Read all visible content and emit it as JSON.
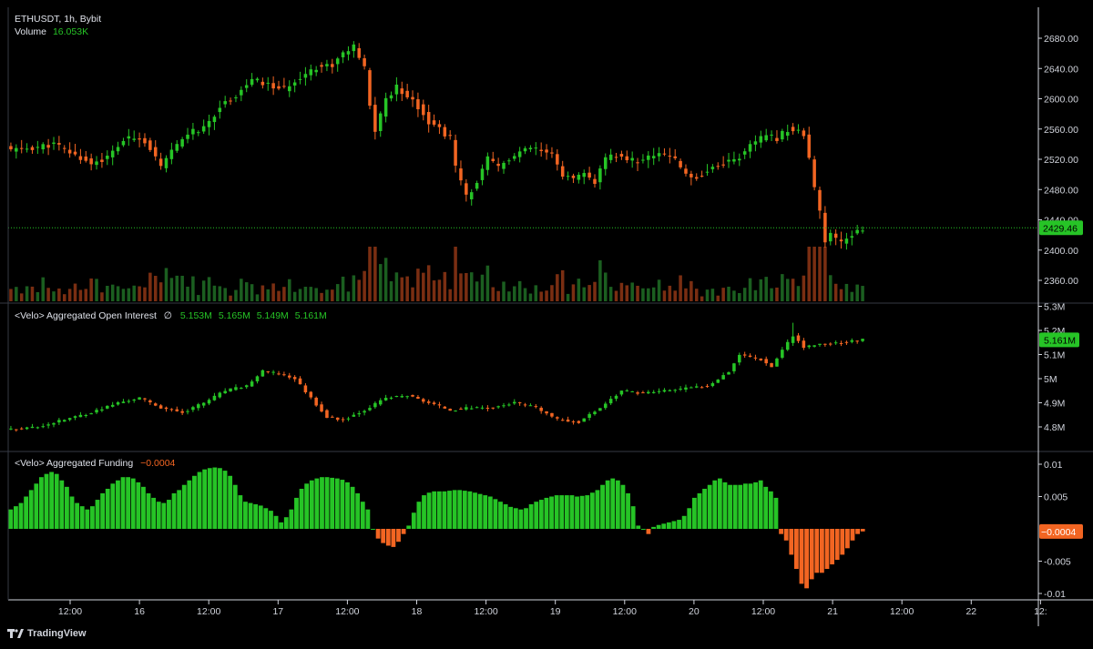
{
  "header": {
    "symbol_line": "ETHUSDT, 1h, Bybit",
    "volume_label": "Volume",
    "volume_value": "16.053K"
  },
  "oi_legend": {
    "label": "<Velo> Aggregated Open Interest",
    "symbol": "∅",
    "values": [
      "5.153M",
      "5.165M",
      "5.149M",
      "5.161M"
    ]
  },
  "funding_legend": {
    "label": "<Velo> Aggregated Funding",
    "value": "−0.0004"
  },
  "footer": {
    "brand": "TradingView"
  },
  "colors": {
    "up": "#26c426",
    "down": "#f26522",
    "bg": "#000000",
    "grid": "#2a2e39",
    "text": "#d1d4dc",
    "price_line": "#26c426"
  },
  "chart_data": [
    {
      "type": "candlestick",
      "name": "ETHUSDT, 1h, Bybit",
      "y_axis_ticks": [
        "2680.00",
        "2640.00",
        "2600.00",
        "2560.00",
        "2520.00",
        "2480.00",
        "2440.00",
        "2400.00",
        "2360.00"
      ],
      "ylim": [
        2340,
        2700
      ],
      "last_price_label": "2429.46",
      "last_price": 2429.46,
      "close_path": [
        [
          0,
          2532
        ],
        [
          5,
          2536
        ],
        [
          8,
          2540
        ],
        [
          12,
          2525
        ],
        [
          15,
          2515
        ],
        [
          18,
          2522
        ],
        [
          21,
          2545
        ],
        [
          24,
          2550
        ],
        [
          26,
          2535
        ],
        [
          28,
          2508
        ],
        [
          30,
          2530
        ],
        [
          33,
          2555
        ],
        [
          36,
          2560
        ],
        [
          39,
          2590
        ],
        [
          42,
          2605
        ],
        [
          45,
          2625
        ],
        [
          48,
          2618
        ],
        [
          51,
          2612
        ],
        [
          54,
          2630
        ],
        [
          57,
          2642
        ],
        [
          60,
          2645
        ],
        [
          62,
          2660
        ],
        [
          64,
          2668
        ],
        [
          66,
          2640
        ],
        [
          67,
          2590
        ],
        [
          68,
          2558
        ],
        [
          70,
          2600
        ],
        [
          72,
          2615
        ],
        [
          74,
          2605
        ],
        [
          76,
          2590
        ],
        [
          78,
          2570
        ],
        [
          80,
          2560
        ],
        [
          82,
          2548
        ],
        [
          83,
          2510
        ],
        [
          85,
          2470
        ],
        [
          87,
          2490
        ],
        [
          89,
          2520
        ],
        [
          91,
          2510
        ],
        [
          93,
          2520
        ],
        [
          95,
          2528
        ],
        [
          97,
          2535
        ],
        [
          99,
          2530
        ],
        [
          101,
          2525
        ],
        [
          103,
          2500
        ],
        [
          105,
          2492
        ],
        [
          107,
          2500
        ],
        [
          109,
          2490
        ],
        [
          111,
          2520
        ],
        [
          113,
          2525
        ],
        [
          115,
          2520
        ],
        [
          117,
          2518
        ],
        [
          119,
          2522
        ],
        [
          121,
          2530
        ],
        [
          123,
          2525
        ],
        [
          125,
          2510
        ],
        [
          127,
          2495
        ],
        [
          129,
          2500
        ],
        [
          131,
          2510
        ],
        [
          133,
          2515
        ],
        [
          135,
          2520
        ],
        [
          137,
          2528
        ],
        [
          139,
          2545
        ],
        [
          141,
          2550
        ],
        [
          143,
          2548
        ],
        [
          145,
          2560
        ],
        [
          147,
          2558
        ],
        [
          148,
          2550
        ],
        [
          149,
          2520
        ],
        [
          150,
          2480
        ],
        [
          151,
          2450
        ],
        [
          152,
          2410
        ],
        [
          153,
          2420
        ],
        [
          155,
          2410
        ],
        [
          157,
          2420
        ],
        [
          158,
          2428
        ],
        [
          159,
          2429.46
        ]
      ]
    },
    {
      "type": "bar",
      "name": "Volume",
      "legend_value": "16.053K"
    },
    {
      "type": "candlestick",
      "name": "<Velo> Aggregated Open Interest",
      "y_axis_ticks": [
        "5.3M",
        "5.2M",
        "5.1M",
        "5M",
        "4.9M",
        "4.8M"
      ],
      "ylim": [
        4.72,
        5.3
      ],
      "last_value_label": "5.161M",
      "close_path": [
        [
          0,
          4.79
        ],
        [
          5,
          4.8
        ],
        [
          10,
          4.83
        ],
        [
          15,
          4.86
        ],
        [
          20,
          4.9
        ],
        [
          24,
          4.92
        ],
        [
          28,
          4.88
        ],
        [
          32,
          4.86
        ],
        [
          36,
          4.9
        ],
        [
          40,
          4.95
        ],
        [
          44,
          4.97
        ],
        [
          47,
          5.03
        ],
        [
          50,
          5.02
        ],
        [
          53,
          5.0
        ],
        [
          56,
          4.92
        ],
        [
          59,
          4.84
        ],
        [
          62,
          4.83
        ],
        [
          66,
          4.87
        ],
        [
          70,
          4.92
        ],
        [
          74,
          4.93
        ],
        [
          78,
          4.9
        ],
        [
          82,
          4.87
        ],
        [
          86,
          4.88
        ],
        [
          90,
          4.88
        ],
        [
          94,
          4.9
        ],
        [
          98,
          4.88
        ],
        [
          102,
          4.83
        ],
        [
          106,
          4.82
        ],
        [
          110,
          4.88
        ],
        [
          114,
          4.95
        ],
        [
          118,
          4.94
        ],
        [
          122,
          4.95
        ],
        [
          126,
          4.96
        ],
        [
          130,
          4.97
        ],
        [
          134,
          5.03
        ],
        [
          136,
          5.1
        ],
        [
          140,
          5.08
        ],
        [
          142,
          5.05
        ],
        [
          144,
          5.12
        ],
        [
          146,
          5.18
        ],
        [
          148,
          5.13
        ],
        [
          150,
          5.14
        ],
        [
          155,
          5.15
        ],
        [
          159,
          5.161
        ]
      ]
    },
    {
      "type": "bar",
      "name": "<Velo> Aggregated Funding",
      "y_axis_ticks": [
        "0.01",
        "0.005",
        "-0.005",
        "-0.01"
      ],
      "ylim": [
        -0.0105,
        0.0112
      ],
      "zero_label": "0",
      "last_value_label": "−0.0004",
      "last_value": -0.0004,
      "values": [
        0.003,
        0.0035,
        0.004,
        0.005,
        0.006,
        0.007,
        0.008,
        0.0085,
        0.0088,
        0.0085,
        0.0075,
        0.0065,
        0.005,
        0.004,
        0.0035,
        0.003,
        0.0035,
        0.0045,
        0.0055,
        0.0062,
        0.007,
        0.0075,
        0.008,
        0.008,
        0.0078,
        0.0072,
        0.0065,
        0.0055,
        0.0048,
        0.0042,
        0.004,
        0.0045,
        0.0055,
        0.006,
        0.0068,
        0.0075,
        0.0082,
        0.0088,
        0.0092,
        0.0094,
        0.0095,
        0.0094,
        0.009,
        0.0082,
        0.0068,
        0.0052,
        0.0042,
        0.004,
        0.0038,
        0.0036,
        0.0032,
        0.0028,
        0.002,
        0.001,
        0.0018,
        0.003,
        0.0048,
        0.0062,
        0.007,
        0.0075,
        0.0078,
        0.008,
        0.008,
        0.0079,
        0.0078,
        0.0076,
        0.0072,
        0.0065,
        0.0055,
        0.0042,
        0.003,
        0.0,
        -0.0015,
        -0.0022,
        -0.0026,
        -0.0028,
        -0.002,
        -0.0008,
        0.0005,
        0.0025,
        0.0042,
        0.0052,
        0.0056,
        0.0058,
        0.0058,
        0.0058,
        0.0059,
        0.006,
        0.006,
        0.0059,
        0.0058,
        0.0056,
        0.0054,
        0.0052,
        0.005,
        0.0046,
        0.0042,
        0.0038,
        0.0034,
        0.0032,
        0.003,
        0.0032,
        0.0038,
        0.0042,
        0.0045,
        0.0048,
        0.005,
        0.0052,
        0.0052,
        0.0052,
        0.0052,
        0.005,
        0.0051,
        0.0052,
        0.0056,
        0.006,
        0.0068,
        0.0075,
        0.0078,
        0.0075,
        0.0068,
        0.0055,
        0.0035,
        0.0005,
        0.0,
        -0.0008,
        0.0003,
        0.0006,
        0.0008,
        0.001,
        0.0012,
        0.0014,
        0.002,
        0.0032,
        0.0048,
        0.0055,
        0.0062,
        0.0068,
        0.0075,
        0.0078,
        0.0072,
        0.0068,
        0.0068,
        0.0068,
        0.007,
        0.007,
        0.0072,
        0.0075,
        0.0065,
        0.0058,
        0.0048,
        -0.0008,
        -0.0018,
        -0.004,
        -0.0062,
        -0.0085,
        -0.0092,
        -0.0078,
        -0.0068,
        -0.0068,
        -0.0062,
        -0.0055,
        -0.0048,
        -0.004,
        -0.003,
        -0.0018,
        -0.0008,
        -0.0004
      ]
    }
  ],
  "x_axis": {
    "ticks": [
      "12:00",
      "16",
      "12:00",
      "17",
      "12:00",
      "18",
      "12:00",
      "19",
      "12:00",
      "20",
      "12:00",
      "21",
      "12:00",
      "22",
      "12:"
    ]
  }
}
